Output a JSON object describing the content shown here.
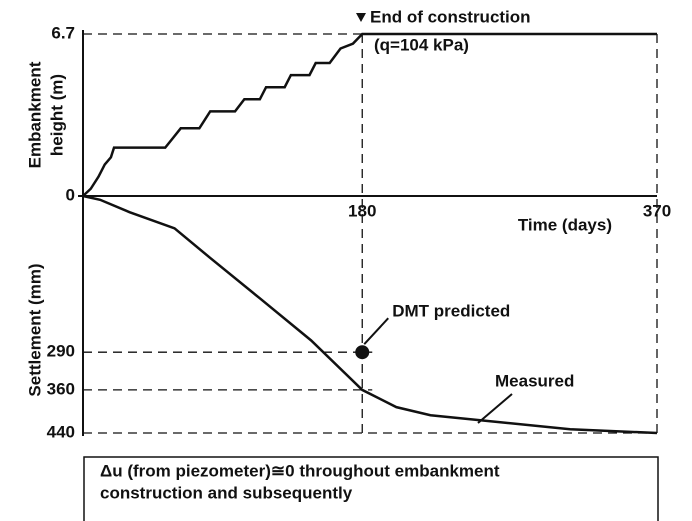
{
  "chart_data": [
    {
      "type": "line",
      "ylabel": [
        "Embankment",
        "height (m)"
      ],
      "xlabel": "Time (days)",
      "annotations": [
        "End of construction",
        "(q=104 kPa)"
      ],
      "xlim": [
        0,
        370
      ],
      "ylim": [
        0,
        6.7
      ],
      "xticks": [
        180,
        370
      ],
      "yticks": [
        0,
        6.7
      ],
      "series": [
        {
          "name": "Embankment height",
          "color": "#111111",
          "x": [
            0,
            5,
            10,
            14,
            18,
            20,
            53,
            58,
            63,
            75,
            82,
            98,
            104,
            114,
            118,
            130,
            134,
            146,
            150,
            159,
            166,
            174,
            180,
            370
          ],
          "values": [
            0,
            0.3,
            0.8,
            1.3,
            1.6,
            2.0,
            2.0,
            2.4,
            2.8,
            2.8,
            3.5,
            3.5,
            4.0,
            4.0,
            4.5,
            4.5,
            5.0,
            5.0,
            5.5,
            5.5,
            6.1,
            6.3,
            6.7,
            6.7
          ]
        }
      ]
    },
    {
      "type": "line",
      "ylabel": "Settlement (mm)",
      "xlim": [
        0,
        370
      ],
      "ylim": [
        0,
        440
      ],
      "yticks": [
        290,
        360,
        440
      ],
      "series": [
        {
          "name": "Measured",
          "color": "#111111",
          "x": [
            0,
            11,
            30,
            59,
            82,
            114,
            147,
            180,
            202,
            224,
            269,
            314,
            370
          ],
          "values": [
            0,
            7,
            30,
            60,
            115,
            190,
            268,
            360,
            392,
            407,
            420,
            433,
            440
          ]
        },
        {
          "name": "DMT predicted",
          "color": "#111111",
          "x": [
            180
          ],
          "values": [
            290
          ]
        }
      ],
      "note": [
        "Δu (from piezometer)≅0 throughout embankment",
        "construction and subsequently"
      ]
    }
  ]
}
